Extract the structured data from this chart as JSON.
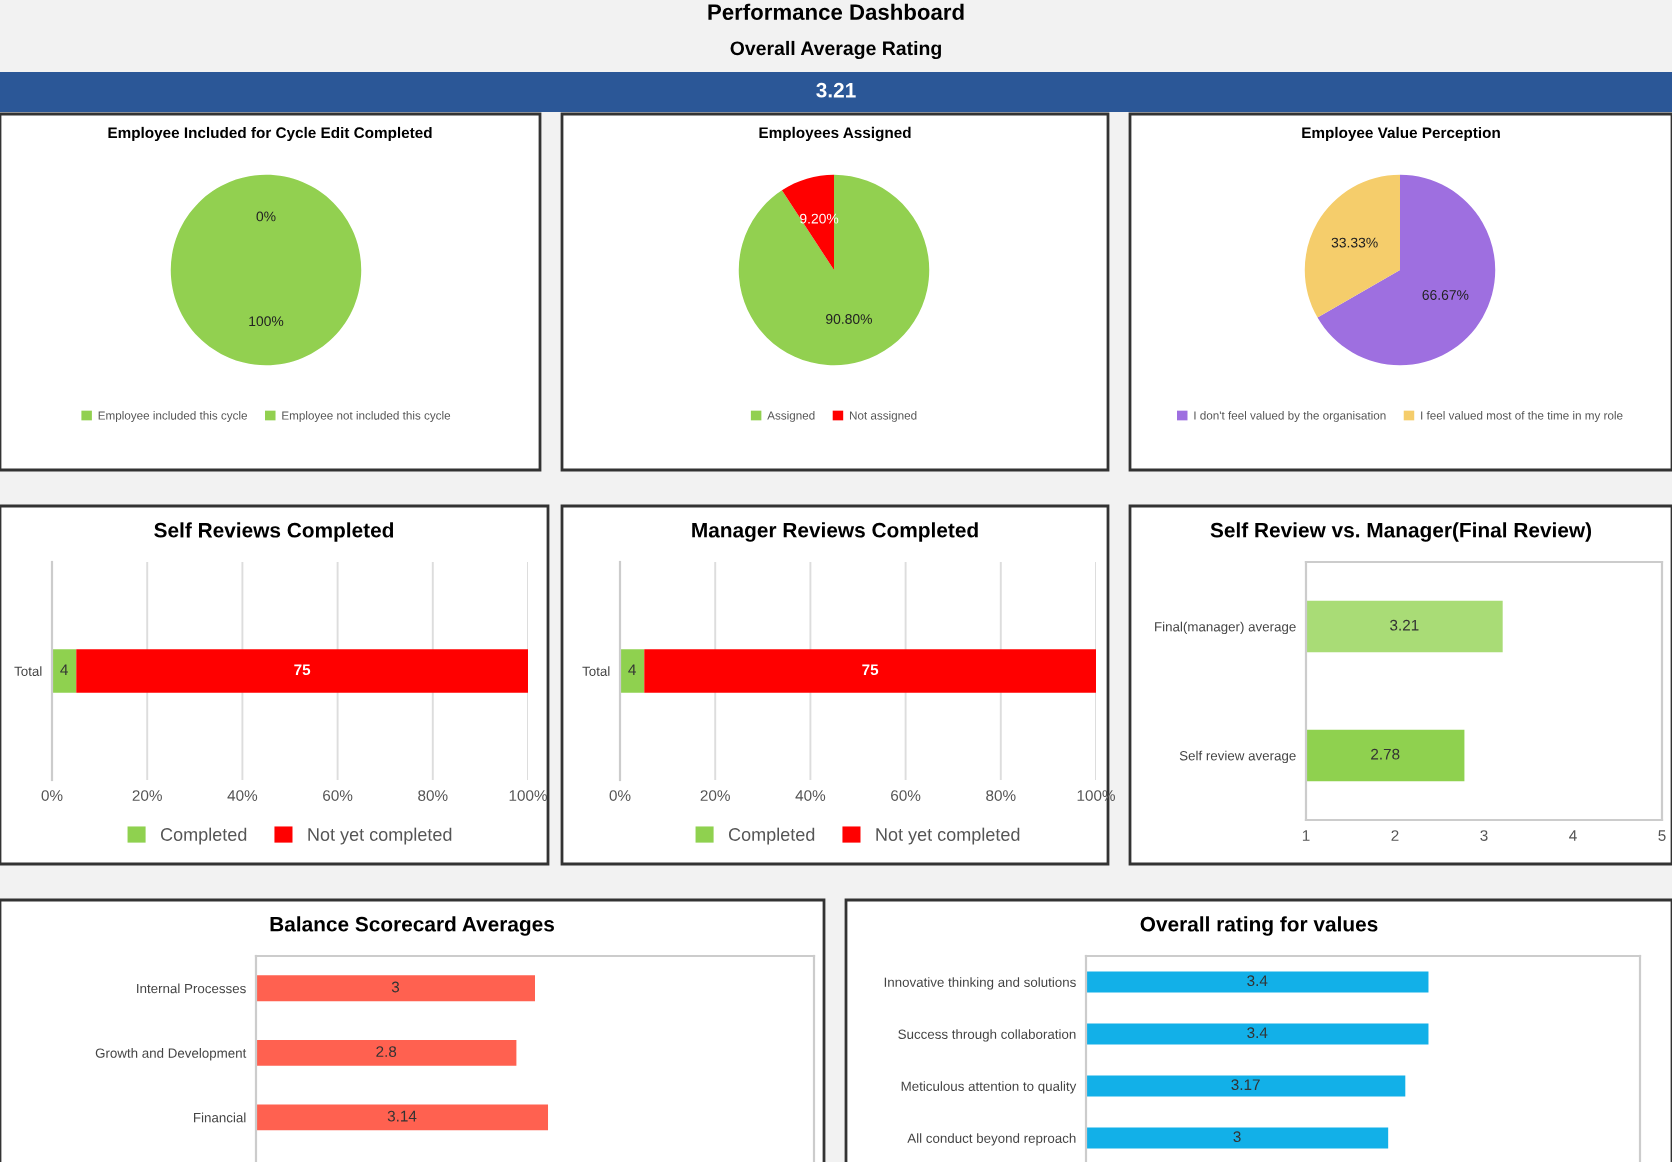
{
  "chart_data": [
    {
      "type": "other",
      "title": "Performance Dashboard",
      "subtitle": "Overall Average Rating",
      "annotations": [
        "3.21"
      ],
      "color": "#2b5797"
    },
    {
      "type": "pie",
      "title": "Employee Included for Cycle Edit Completed",
      "categories": [
        "Employee included this cycle",
        "Employee not included this cycle"
      ],
      "values": [
        0,
        100
      ],
      "colors": [
        "#92d050",
        "#92d050"
      ],
      "value_labels": [
        "0%",
        "100%"
      ],
      "legend": "bottom"
    },
    {
      "type": "pie",
      "title": "Employees Assigned",
      "categories": [
        "Assigned",
        "Not assigned"
      ],
      "values": [
        90.8,
        9.2
      ],
      "colors": [
        "#92d050",
        "#ff0000"
      ],
      "value_labels": [
        "90.80%",
        "9.20%"
      ],
      "legend": "bottom"
    },
    {
      "type": "pie",
      "title": "Employee Value Perception",
      "categories": [
        "I don't feel valued by the organisation",
        "I feel valued most of the time in my role"
      ],
      "values": [
        66.67,
        33.33
      ],
      "colors": [
        "#9e6fe0",
        "#f5cd6b"
      ],
      "value_labels": [
        "66.67%",
        "33.33%"
      ],
      "legend": "bottom"
    },
    {
      "type": "bar",
      "title": "Self Reviews Completed",
      "orientation": "horizontal",
      "stacked": true,
      "categories": [
        "Total"
      ],
      "series": [
        {
          "name": "Completed",
          "color": "#8fd14f",
          "values": [
            5.1
          ]
        },
        {
          "name": "Not yet completed",
          "color": "#ff0000",
          "values": [
            94.9
          ]
        }
      ],
      "annotations": [
        "4",
        "75"
      ],
      "xlim": [
        0,
        100
      ],
      "xticks": [
        {
          "value": 0,
          "label": "0%"
        },
        {
          "value": 20,
          "label": "20%"
        },
        {
          "value": 40,
          "label": "40%"
        },
        {
          "value": 60,
          "label": "60%"
        },
        {
          "value": 80,
          "label": "80%"
        },
        {
          "value": 100,
          "label": "100%"
        }
      ],
      "grid": "x",
      "legend": "bottom"
    },
    {
      "type": "bar",
      "title": "Manager Reviews Completed",
      "orientation": "horizontal",
      "stacked": true,
      "categories": [
        "Total"
      ],
      "series": [
        {
          "name": "Completed",
          "color": "#8fd14f",
          "values": [
            5.1
          ]
        },
        {
          "name": "Not yet completed",
          "color": "#ff0000",
          "values": [
            94.9
          ]
        }
      ],
      "annotations": [
        "4",
        "75"
      ],
      "xlim": [
        0,
        100
      ],
      "xticks": [
        {
          "value": 0,
          "label": "0%"
        },
        {
          "value": 20,
          "label": "20%"
        },
        {
          "value": 40,
          "label": "40%"
        },
        {
          "value": 60,
          "label": "60%"
        },
        {
          "value": 80,
          "label": "80%"
        },
        {
          "value": 100,
          "label": "100%"
        }
      ],
      "grid": "x",
      "legend": "bottom"
    },
    {
      "type": "bar",
      "title": "Self Review vs. Manager(Final Review)",
      "orientation": "horizontal",
      "categories": [
        "Final(manager) average",
        "Self review average"
      ],
      "values": [
        3.21,
        2.78
      ],
      "colors": [
        "#a9dc76",
        "#8fd14f"
      ],
      "data_labels": true,
      "xlim": [
        1,
        5
      ],
      "xticks": [
        1,
        2,
        3,
        4,
        5
      ]
    },
    {
      "type": "bar",
      "title": "Balance Scorecard Averages",
      "orientation": "horizontal",
      "categories": [
        "Internal Processes",
        "Growth and Development",
        "Financial"
      ],
      "values": [
        3,
        2.8,
        3.14
      ],
      "color": "#ff6150",
      "data_labels": true,
      "xlim": [
        0,
        6
      ],
      "tick_labels": "y"
    },
    {
      "type": "bar",
      "title": "Overall rating for values",
      "orientation": "horizontal",
      "categories": [
        "Innovative thinking and solutions",
        "Success through collaboration",
        "Meticulous attention to quality",
        "All conduct beyond reproach"
      ],
      "values": [
        3.4,
        3.4,
        3.17,
        3
      ],
      "color": "#12b0e8",
      "data_labels": true,
      "xlim": [
        0,
        5.5
      ],
      "tick_labels": "y"
    }
  ]
}
